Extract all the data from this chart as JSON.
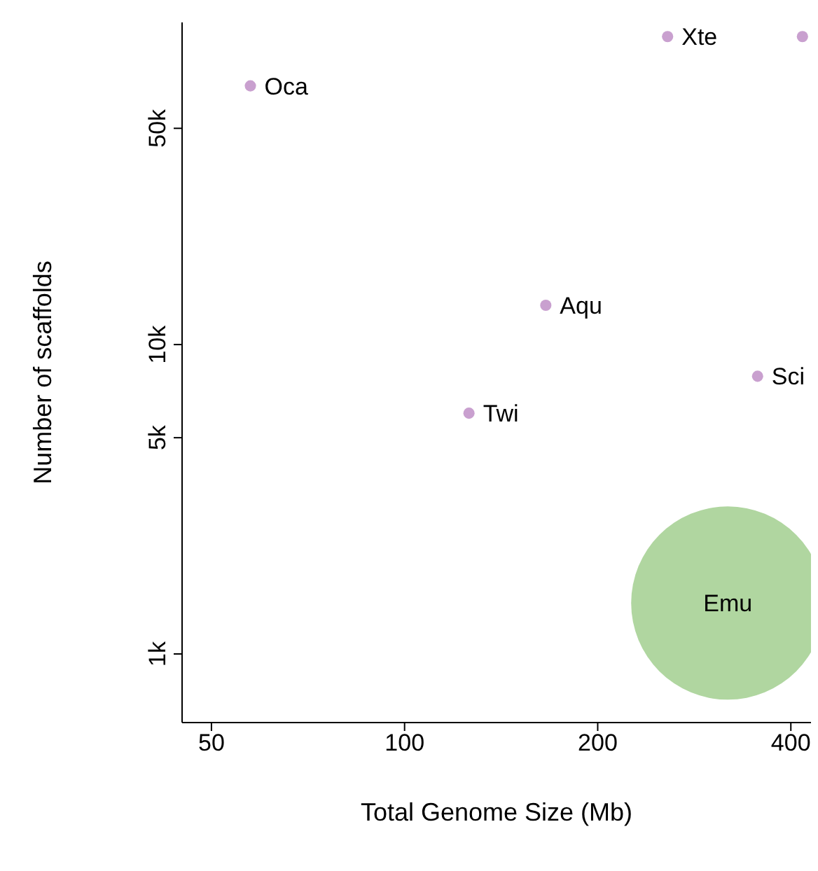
{
  "chart_data": {
    "type": "bubble",
    "xlabel": "Total Genome Size (Mb)",
    "ylabel": "Number of scaffolds",
    "log": "xy",
    "xlim": [
      45,
      430
    ],
    "xticks": [
      50,
      100,
      200,
      400
    ],
    "ylim": [
      600,
      110000
    ],
    "yticks": [
      {
        "value": 1000,
        "label": "1k"
      },
      {
        "value": 5000,
        "label": "5k"
      },
      {
        "value": 10000,
        "label": "10k"
      },
      {
        "value": 50000,
        "label": "50k"
      }
    ],
    "grid": false,
    "legend": false,
    "series": [
      {
        "name": "Oca",
        "color": "#c9a0cf",
        "x": [
          57.5
        ],
        "values": [
          68600
        ],
        "sizes": [
          0.0034
        ]
      },
      {
        "name": "Xte",
        "color": "#c9a0cf",
        "x": [
          257
        ],
        "values": [
          99000
        ],
        "sizes": [
          0.0034
        ]
      },
      {
        "color": "#c9a0cf",
        "x": [
          417
        ],
        "values": [
          99000
        ],
        "sizes": [
          0.0034
        ]
      },
      {
        "name": "Aqu",
        "color": "#c9a0cf",
        "x": [
          166
        ],
        "values": [
          13400
        ],
        "sizes": [
          0.0034
        ]
      },
      {
        "name": "Twi",
        "color": "#c9a0cf",
        "x": [
          126
        ],
        "values": [
          6000
        ],
        "sizes": [
          0.0034
        ]
      },
      {
        "name": "Sci",
        "color": "#c9a0cf",
        "x": [
          355
        ],
        "values": [
          7900
        ],
        "sizes": [
          0.0034
        ]
      },
      {
        "name": "Emu",
        "color": "#b0d6a0",
        "x": [
          319
        ],
        "values": [
          1460
        ],
        "sizes": [
          1
        ]
      }
    ]
  }
}
